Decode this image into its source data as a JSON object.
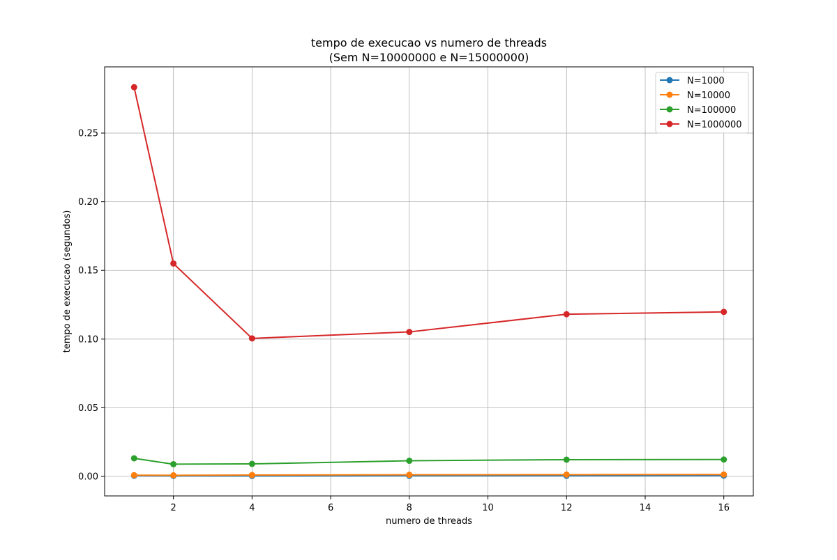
{
  "chart_data": {
    "type": "line",
    "title": "tempo de execucao vs numero de threads",
    "subtitle": "(Sem N=10000000 e N=15000000)",
    "xlabel": "numero de threads",
    "ylabel": "tempo de execucao (segundos)",
    "x": [
      1,
      2,
      4,
      8,
      12,
      16
    ],
    "xlim": [
      0.25,
      16.75
    ],
    "ylim": [
      -0.0142,
      0.2982
    ],
    "xticks": [
      2,
      4,
      6,
      8,
      10,
      12,
      14,
      16
    ],
    "yticks": [
      0.0,
      0.05,
      0.1,
      0.15,
      0.2,
      0.25
    ],
    "ytick_labels": [
      "0.00",
      "0.05",
      "0.10",
      "0.15",
      "0.20",
      "0.25"
    ],
    "grid": true,
    "legend_position": "top-right",
    "series": [
      {
        "name": "N=1000",
        "color": "#1f77b4",
        "marker": "circle",
        "values": [
          0.0005,
          0.0004,
          0.0004,
          0.0005,
          0.0005,
          0.0006
        ]
      },
      {
        "name": "N=10000",
        "color": "#ff7f0e",
        "marker": "circle",
        "values": [
          0.0009,
          0.0008,
          0.001,
          0.0012,
          0.0013,
          0.0014
        ]
      },
      {
        "name": "N=100000",
        "color": "#2ca02c",
        "marker": "circle",
        "values": [
          0.0132,
          0.0089,
          0.0091,
          0.0114,
          0.0122,
          0.0123
        ]
      },
      {
        "name": "N=1000000",
        "color": "#d62728",
        "marker": "circle",
        "values": [
          0.2834,
          0.155,
          0.1005,
          0.1052,
          0.1181,
          0.1198
        ]
      }
    ]
  }
}
